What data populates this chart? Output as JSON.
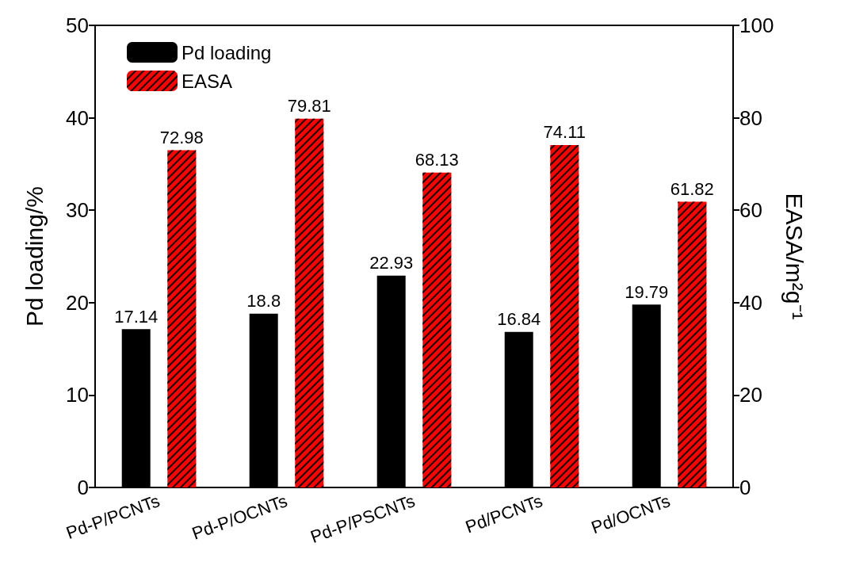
{
  "chart_data": {
    "type": "bar",
    "categories": [
      "Pd-P/PCNTs",
      "Pd-P/OCNTs",
      "Pd-P/PSCNTs",
      "Pd/PCNTs",
      "Pd/OCNTs"
    ],
    "ylabel": "Pd loading/%",
    "y2label": "EASA/m²g⁻¹",
    "series": [
      {
        "name": "Pd loading",
        "color": "#000000",
        "values": [
          17.14,
          18.8,
          22.93,
          16.84,
          19.79
        ]
      },
      {
        "name": "EASA",
        "color": "#ff0000",
        "axis": "y2",
        "values": [
          72.98,
          79.81,
          68.13,
          74.11,
          61.82
        ]
      }
    ],
    "ylim": [
      0,
      50
    ],
    "yticks": [
      0,
      10,
      20,
      30,
      40,
      50
    ],
    "y2lim": [
      0,
      100
    ],
    "y2ticks": [
      0,
      20,
      40,
      60,
      80,
      100
    ],
    "data_labels": true,
    "legend": "top left",
    "grid": false
  }
}
